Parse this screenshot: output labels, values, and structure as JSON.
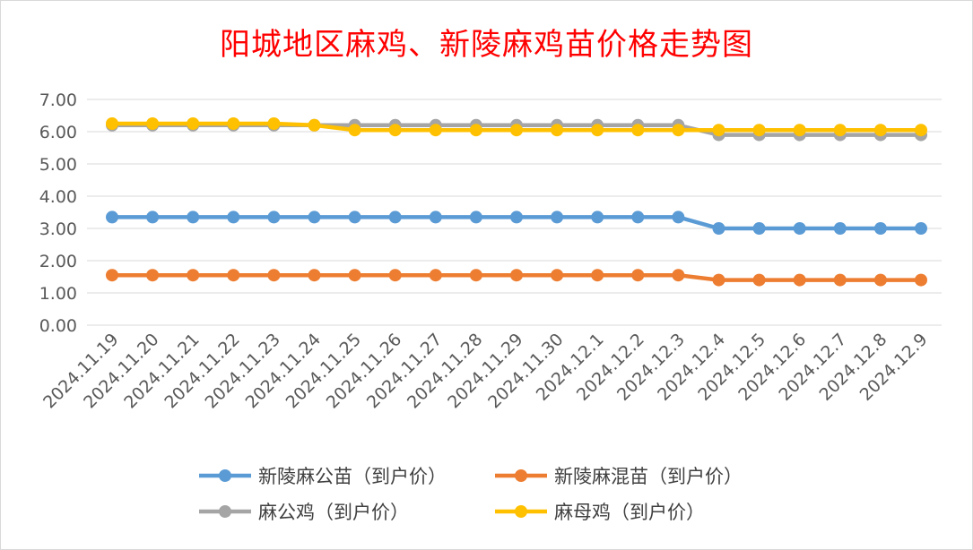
{
  "chart_data": {
    "type": "line",
    "title": "阳城地区麻鸡、新陵麻鸡苗价格走势图",
    "xlabel": "",
    "ylabel": "",
    "categories": [
      "2024.11.19",
      "2024.11.20",
      "2024.11.21",
      "2024.11.22",
      "2024.11.23",
      "2024.11.24",
      "2024.11.25",
      "2024.11.26",
      "2024.11.27",
      "2024.11.28",
      "2024.11.29",
      "2024.11.30",
      "2024.12.1",
      "2024.12.2",
      "2024.12.3",
      "2024.12.4",
      "2024.12.5",
      "2024.12.6",
      "2024.12.7",
      "2024.12.8",
      "2024.12.9"
    ],
    "ylim": [
      0,
      7
    ],
    "yticks": [
      "0.00",
      "1.00",
      "2.00",
      "3.00",
      "4.00",
      "5.00",
      "6.00",
      "7.00"
    ],
    "grid": true,
    "legend_position": "bottom",
    "series": [
      {
        "name": "新陵麻公苗（到户价）",
        "color": "#5b9bd5",
        "values": [
          3.35,
          3.35,
          3.35,
          3.35,
          3.35,
          3.35,
          3.35,
          3.35,
          3.35,
          3.35,
          3.35,
          3.35,
          3.35,
          3.35,
          3.35,
          3.0,
          3.0,
          3.0,
          3.0,
          3.0,
          3.0
        ]
      },
      {
        "name": "新陵麻混苗（到户价）",
        "color": "#ed7d31",
        "values": [
          1.55,
          1.55,
          1.55,
          1.55,
          1.55,
          1.55,
          1.55,
          1.55,
          1.55,
          1.55,
          1.55,
          1.55,
          1.55,
          1.55,
          1.55,
          1.4,
          1.4,
          1.4,
          1.4,
          1.4,
          1.4
        ]
      },
      {
        "name": "麻公鸡（到户价）",
        "color": "#a5a5a5",
        "values": [
          6.2,
          6.2,
          6.2,
          6.2,
          6.2,
          6.2,
          6.2,
          6.2,
          6.2,
          6.2,
          6.2,
          6.2,
          6.2,
          6.2,
          6.2,
          5.9,
          5.9,
          5.9,
          5.9,
          5.9,
          5.9
        ]
      },
      {
        "name": "麻母鸡（到户价）",
        "color": "#ffc000",
        "values": [
          6.25,
          6.25,
          6.25,
          6.25,
          6.25,
          6.2,
          6.05,
          6.05,
          6.05,
          6.05,
          6.05,
          6.05,
          6.05,
          6.05,
          6.05,
          6.05,
          6.05,
          6.05,
          6.05,
          6.05,
          6.05
        ]
      }
    ]
  }
}
